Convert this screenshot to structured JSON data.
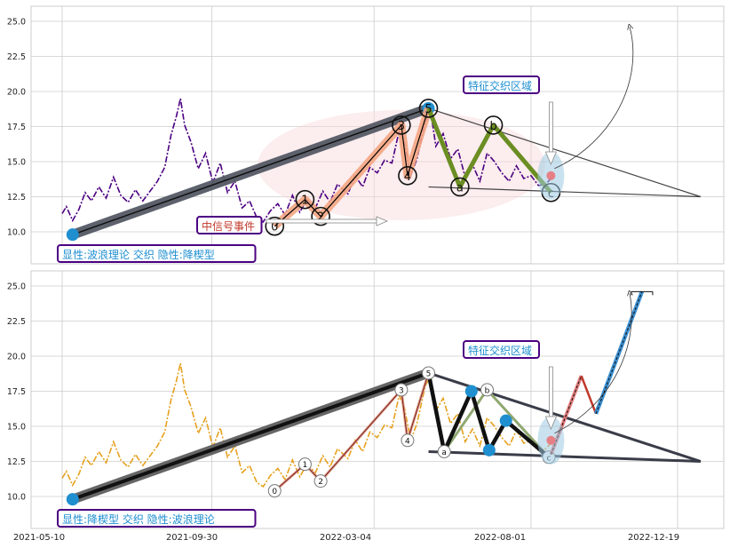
{
  "chart_data": [
    {
      "type": "line",
      "panel": "top",
      "ylim": [
        8.5,
        26.0
      ],
      "y_ticks": [
        "10.0",
        "12.5",
        "15.0",
        "17.5",
        "20.0",
        "22.5",
        "25.0"
      ],
      "grid": true,
      "price_color": "#4b0082",
      "price_series": [
        [
          "2021-05-10",
          11.3
        ],
        [
          "2021-05-14",
          11.8
        ],
        [
          "2021-05-20",
          10.8
        ],
        [
          "2021-05-26",
          11.6
        ],
        [
          "2021-06-01",
          12.8
        ],
        [
          "2021-06-07",
          12.2
        ],
        [
          "2021-06-14",
          13.2
        ],
        [
          "2021-06-21",
          12.4
        ],
        [
          "2021-06-28",
          13.9
        ],
        [
          "2021-07-05",
          12.6
        ],
        [
          "2021-07-12",
          12.1
        ],
        [
          "2021-07-19",
          13.0
        ],
        [
          "2021-07-26",
          12.2
        ],
        [
          "2021-08-02",
          12.9
        ],
        [
          "2021-08-09",
          13.6
        ],
        [
          "2021-08-16",
          14.6
        ],
        [
          "2021-08-22",
          16.9
        ],
        [
          "2021-08-27",
          18.2
        ],
        [
          "2021-08-31",
          19.5
        ],
        [
          "2021-09-04",
          17.6
        ],
        [
          "2021-09-10",
          16.4
        ],
        [
          "2021-09-17",
          14.5
        ],
        [
          "2021-09-24",
          15.6
        ],
        [
          "2021-10-01",
          13.5
        ],
        [
          "2021-10-08",
          14.9
        ],
        [
          "2021-10-15",
          12.8
        ],
        [
          "2021-10-22",
          13.6
        ],
        [
          "2021-10-29",
          11.7
        ],
        [
          "2021-11-05",
          12.2
        ],
        [
          "2021-11-12",
          11.0
        ],
        [
          "2021-11-18",
          10.7
        ],
        [
          "2021-11-25",
          11.5
        ],
        [
          "2021-12-02",
          12.0
        ],
        [
          "2021-12-09",
          11.2
        ],
        [
          "2021-12-16",
          12.6
        ],
        [
          "2021-12-23",
          11.4
        ],
        [
          "2021-12-30",
          12.3
        ],
        [
          "2022-01-07",
          11.7
        ],
        [
          "2022-01-14",
          12.9
        ],
        [
          "2022-01-21",
          12.1
        ],
        [
          "2022-01-28",
          13.4
        ],
        [
          "2022-02-07",
          12.7
        ],
        [
          "2022-02-14",
          14.0
        ],
        [
          "2022-02-21",
          13.2
        ],
        [
          "2022-02-28",
          14.6
        ],
        [
          "2022-03-07",
          14.2
        ],
        [
          "2022-03-14",
          15.1
        ],
        [
          "2022-03-21",
          14.9
        ],
        [
          "2022-03-28",
          17.2
        ],
        [
          "2022-04-02",
          16.3
        ],
        [
          "2022-04-08",
          14.0
        ],
        [
          "2022-04-14",
          15.2
        ],
        [
          "2022-04-22",
          17.9
        ],
        [
          "2022-04-27",
          18.6
        ],
        [
          "2022-05-02",
          16.1
        ],
        [
          "2022-05-09",
          17.0
        ],
        [
          "2022-05-16",
          15.2
        ],
        [
          "2022-05-23",
          15.9
        ],
        [
          "2022-05-30",
          13.9
        ],
        [
          "2022-06-06",
          14.8
        ],
        [
          "2022-06-13",
          13.6
        ],
        [
          "2022-06-20",
          15.6
        ],
        [
          "2022-06-27",
          15.0
        ],
        [
          "2022-07-04",
          14.2
        ],
        [
          "2022-07-11",
          13.6
        ],
        [
          "2022-07-18",
          14.7
        ],
        [
          "2022-07-25",
          13.8
        ],
        [
          "2022-08-01",
          14.0
        ],
        [
          "2022-08-08",
          13.3
        ],
        [
          "2022-08-15",
          13.4
        ],
        [
          "2022-08-20",
          13.8
        ]
      ],
      "waves": {
        "line_color": "#000000",
        "fill_color": "#f4a582",
        "points": [
          {
            "label": "0",
            "x": "2021-11-29",
            "y": 10.4
          },
          {
            "label": "1",
            "x": "2021-12-28",
            "y": 12.3
          },
          {
            "label": "2",
            "x": "2022-01-12",
            "y": 11.1
          },
          {
            "label": "3",
            "x": "2022-03-30",
            "y": 17.6
          },
          {
            "label": "4",
            "x": "2022-04-05",
            "y": 14.0
          },
          {
            "label": "5",
            "x": "2022-04-25",
            "y": 18.8
          }
        ]
      },
      "abc": {
        "color": "#6b8e23",
        "points": [
          {
            "label": "a",
            "x": "2022-05-25",
            "y": 13.2
          },
          {
            "label": "b",
            "x": "2022-06-26",
            "y": 17.6
          },
          {
            "label": "c",
            "x": "2022-08-20",
            "y": 12.8
          }
        ]
      },
      "wedge": {
        "start": {
          "x": "2021-05-20",
          "y": 9.8
        },
        "peak": {
          "x": "2022-04-25",
          "y": 18.8
        },
        "lower_start": {
          "x": "2022-04-25",
          "y": 13.2
        },
        "apex": {
          "x": "2023-01-10",
          "y": 12.5
        }
      },
      "event_marker": {
        "text": "中信号事件",
        "x": "2021-12-05",
        "y": 10.2
      },
      "zone_label": "特征交织区域",
      "zone_center": {
        "x": "2022-08-20",
        "y": 14.0
      },
      "bottom_label": "显性:波浪理论 交织 隐性:降楔型"
    },
    {
      "type": "line",
      "panel": "bottom",
      "ylim": [
        8.5,
        26.0
      ],
      "y_ticks": [
        "10.0",
        "12.5",
        "15.0",
        "17.5",
        "20.0",
        "22.5",
        "25.0"
      ],
      "x_ticks": [
        "2021-05-10",
        "2021-09-30",
        "2022-03-04",
        "2022-08-01",
        "2022-12-19"
      ],
      "grid": true,
      "price_color": "#e6a11e",
      "waves": {
        "points": [
          {
            "label": "0",
            "x": "2021-11-29",
            "y": 10.4
          },
          {
            "label": "1",
            "x": "2021-12-28",
            "y": 12.3
          },
          {
            "label": "2",
            "x": "2022-01-12",
            "y": 11.1
          },
          {
            "label": "3",
            "x": "2022-03-30",
            "y": 17.6
          },
          {
            "label": "4",
            "x": "2022-04-05",
            "y": 14.0
          },
          {
            "label": "5",
            "x": "2022-04-25",
            "y": 18.8
          }
        ]
      },
      "abc": {
        "points": [
          {
            "label": "a",
            "x": "2022-05-10",
            "y": 13.2
          },
          {
            "label": "b",
            "x": "2022-06-20",
            "y": 17.6
          },
          {
            "label": "c",
            "x": "2022-08-18",
            "y": 12.8
          }
        ]
      },
      "wedge_zigzag": [
        {
          "x": "2022-04-25",
          "y": 18.8
        },
        {
          "x": "2022-05-10",
          "y": 13.2
        },
        {
          "x": "2022-06-05",
          "y": 17.5
        },
        {
          "x": "2022-06-22",
          "y": 13.3
        },
        {
          "x": "2022-07-08",
          "y": 15.4
        },
        {
          "x": "2022-08-18",
          "y": 12.8
        }
      ],
      "projection": [
        {
          "x": "2022-08-20",
          "y": 13.0
        },
        {
          "x": "2022-09-18",
          "y": 18.6
        },
        {
          "x": "2022-10-02",
          "y": 15.9
        },
        {
          "x": "2022-11-15",
          "y": 24.6
        }
      ],
      "zone_label": "特征交织区域",
      "bottom_label": "显性:降楔型 交织 隐性:波浪理论"
    }
  ]
}
